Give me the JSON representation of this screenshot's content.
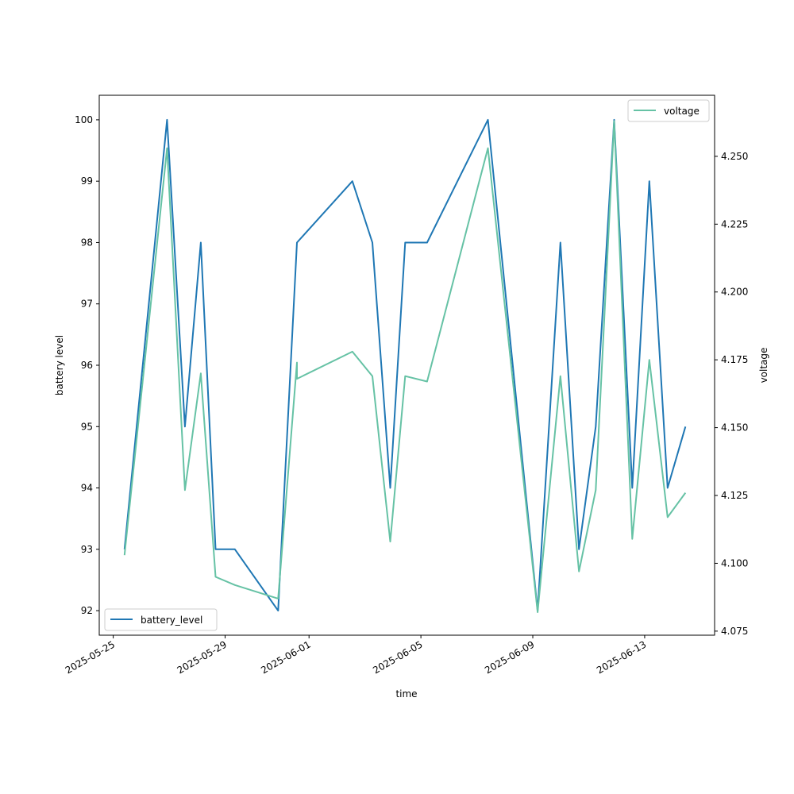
{
  "chart_data": {
    "type": "line",
    "xlabel": "time",
    "ylabel_left": "battery level",
    "ylabel_right": "voltage",
    "x_ticks": [
      "2025-05-25",
      "2025-05-29",
      "2025-06-01",
      "2025-06-05",
      "2025-06-09",
      "2025-06-13"
    ],
    "y_left_ticks": [
      92,
      93,
      94,
      95,
      96,
      97,
      98,
      99,
      100
    ],
    "y_right_ticks": [
      "4.075",
      "4.100",
      "4.125",
      "4.150",
      "4.175",
      "4.200",
      "4.225",
      "4.250"
    ],
    "xlim": [
      "2025-05-24 12:00",
      "2025-06-15 12:00"
    ],
    "ylim_left": [
      91.6,
      100.4
    ],
    "ylim_right": [
      4.0735,
      4.2725
    ],
    "legend_left": {
      "label": "battery_level",
      "position": "lower-left"
    },
    "legend_right": {
      "label": "voltage",
      "position": "upper-right"
    },
    "series": [
      {
        "name": "battery_level",
        "axis": "left",
        "color": "#1f77b4",
        "x": [
          "2025-05-25 09:40",
          "2025-05-26 22:10",
          "2025-05-27 13:30",
          "2025-05-28 03:10",
          "2025-05-28 15:50",
          "2025-05-29 08:20",
          "2025-05-30 21:30",
          "2025-05-31 13:40",
          "2025-06-02 13:10",
          "2025-06-03 06:20",
          "2025-06-03 21:40",
          "2025-06-04 10:30",
          "2025-06-05 05:20",
          "2025-06-07 09:30",
          "2025-06-09 04:10",
          "2025-06-09 23:40",
          "2025-06-10 15:40",
          "2025-06-11 06:00",
          "2025-06-11 21:50",
          "2025-06-12 13:20",
          "2025-06-13 04:00",
          "2025-06-13 19:40",
          "2025-06-14 11:00"
        ],
        "values": [
          93,
          100,
          95,
          98,
          93,
          93,
          92,
          98,
          99,
          98,
          94,
          98,
          98,
          100,
          92,
          98,
          93,
          95,
          100,
          94,
          99,
          94,
          95
        ]
      },
      {
        "name": "voltage",
        "axis": "right",
        "color": "#66c2a5",
        "x": [
          "2025-05-25 09:40",
          "2025-05-26 22:10",
          "2025-05-27 13:30",
          "2025-05-28 03:10",
          "2025-05-28 15:50",
          "2025-05-29 08:20",
          "2025-05-30 21:30",
          "2025-05-31 13:40",
          "2025-05-31 13:40",
          "2025-06-02 13:10",
          "2025-06-03 06:20",
          "2025-06-03 21:40",
          "2025-06-04 10:30",
          "2025-06-05 05:20",
          "2025-06-07 09:30",
          "2025-06-09 04:10",
          "2025-06-09 23:40",
          "2025-06-10 15:40",
          "2025-06-11 06:00",
          "2025-06-11 21:50",
          "2025-06-12 13:20",
          "2025-06-13 04:00",
          "2025-06-13 19:40",
          "2025-06-14 11:00"
        ],
        "values": [
          4.103,
          4.253,
          4.127,
          4.17,
          4.095,
          4.092,
          4.087,
          4.174,
          4.168,
          4.178,
          4.169,
          4.108,
          4.169,
          4.167,
          4.253,
          4.082,
          4.169,
          4.097,
          4.127,
          4.263,
          4.109,
          4.175,
          4.117,
          4.126
        ]
      }
    ]
  }
}
